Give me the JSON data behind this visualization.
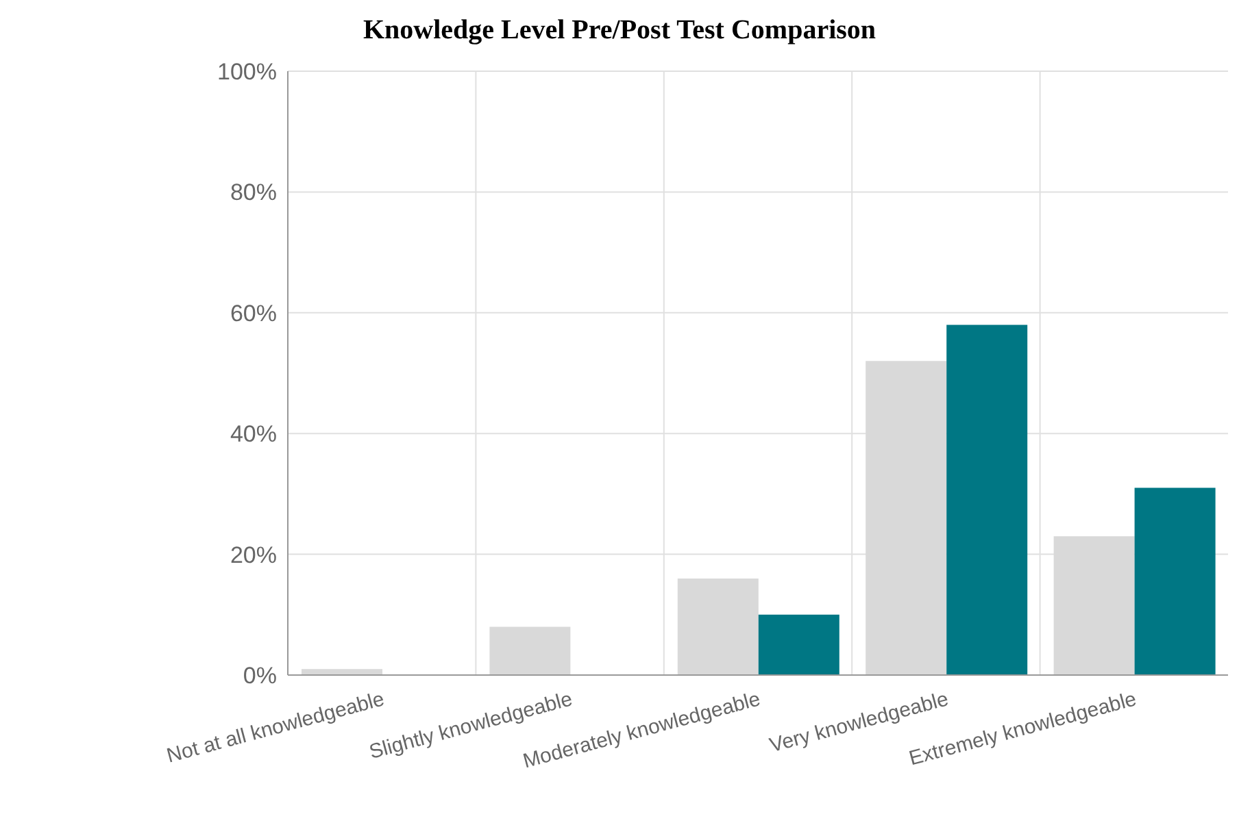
{
  "chart_data": {
    "type": "bar",
    "title": "Knowledge Level Pre/Post Test Comparison",
    "categories": [
      "Not at all knowledgeable",
      "Slightly knowledgeable",
      "Moderately knowledgeable",
      "Very knowledgeable",
      "Extremely knowledgeable"
    ],
    "series": [
      {
        "color": "#d9d9d9",
        "values": [
          1,
          8,
          16,
          52,
          23
        ]
      },
      {
        "color": "#007784",
        "values": [
          0,
          0,
          10,
          58,
          31
        ]
      }
    ],
    "ylim": [
      0,
      100
    ],
    "yticks": [
      {
        "value": 0,
        "label": "0%"
      },
      {
        "value": 20,
        "label": "20%"
      },
      {
        "value": 40,
        "label": "40%"
      },
      {
        "value": 60,
        "label": "60%"
      },
      {
        "value": 80,
        "label": "80%"
      },
      {
        "value": 100,
        "label": "100%"
      }
    ],
    "grid": true
  }
}
